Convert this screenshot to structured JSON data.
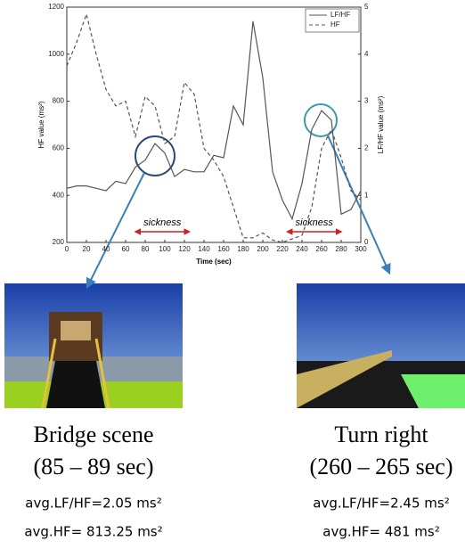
{
  "chart_data": {
    "type": "line",
    "x_label": "Time (sec)",
    "y_label": "HF value (ms²)",
    "y2_label": "LF/HF value (ms²)",
    "x": [
      0,
      10,
      20,
      30,
      40,
      50,
      60,
      70,
      80,
      90,
      100,
      110,
      120,
      130,
      140,
      150,
      160,
      170,
      180,
      190,
      200,
      210,
      220,
      230,
      240,
      250,
      260,
      270,
      280,
      290,
      300
    ],
    "series": [
      {
        "name": "LF/HF",
        "color": "#555555",
        "dash": false,
        "axis": "y2",
        "values": [
          1.15,
          1.2,
          1.2,
          1.15,
          1.1,
          1.3,
          1.25,
          1.6,
          1.75,
          2.1,
          1.9,
          1.4,
          1.55,
          1.5,
          1.5,
          1.85,
          1.8,
          2.9,
          2.5,
          4.7,
          3.5,
          1.5,
          0.9,
          0.5,
          1.25,
          2.4,
          2.8,
          2.6,
          0.6,
          0.7,
          1.1
        ]
      },
      {
        "name": "HF",
        "color": "#555555",
        "dash": true,
        "values": [
          950,
          1050,
          1170,
          1000,
          850,
          780,
          800,
          650,
          820,
          780,
          620,
          650,
          880,
          830,
          600,
          550,
          480,
          350,
          220,
          220,
          240,
          210,
          200,
          215,
          230,
          350,
          600,
          680,
          560,
          420,
          380
        ]
      }
    ],
    "xlim": [
      0,
      300
    ],
    "xticks": [
      0,
      20,
      40,
      60,
      80,
      100,
      120,
      140,
      160,
      180,
      200,
      220,
      240,
      260,
      280,
      300
    ],
    "ylim": [
      200,
      1200
    ],
    "yticks": [
      200,
      400,
      600,
      800,
      1000,
      1200
    ],
    "y2lim": [
      0,
      5
    ],
    "y2ticks": [
      0,
      1,
      2,
      3,
      4,
      5
    ],
    "legend": "top-right",
    "annotations": [
      "sickness",
      "sickness"
    ]
  },
  "panels": [
    {
      "title": "Bridge scene",
      "range": "(85 – 89 sec)",
      "lfhf": "avg.LF/HF=2.05 ms²",
      "hf": "avg.HF= 813.25 ms²"
    },
    {
      "title": "Turn right",
      "range": "(260 – 265 sec)",
      "lfhf": "avg.LF/HF=2.45 ms²",
      "hf": "avg.HF= 481 ms²"
    }
  ]
}
